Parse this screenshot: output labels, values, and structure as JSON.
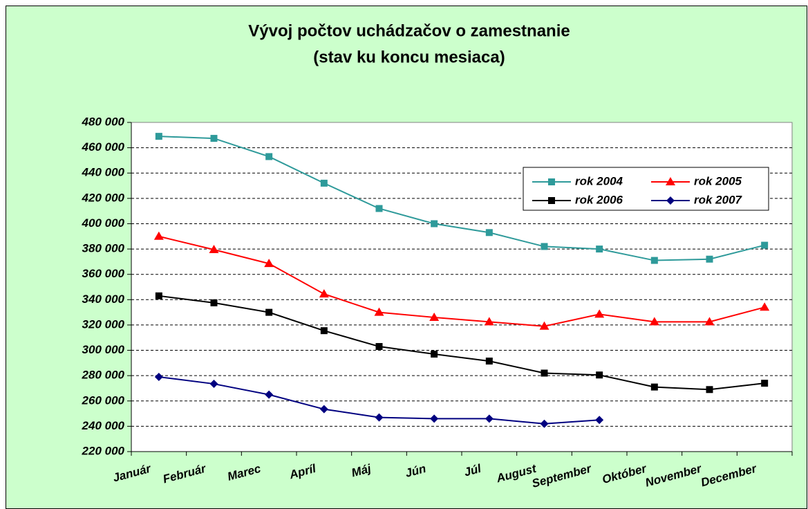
{
  "chart_data": {
    "type": "line",
    "title": "Vývoj  počtov uchádzačov o zamestnanie",
    "subtitle": "(stav ku koncu mesiaca)",
    "categories": [
      "Január",
      "Február",
      "Marec",
      "Apríl",
      "Máj",
      "Jún",
      "Júl",
      "August",
      "September",
      "Október",
      "November",
      "December"
    ],
    "series": [
      {
        "name": "rok 2004",
        "color": "#2e9a9a",
        "marker": "square",
        "values": [
          469000,
          467400,
          453000,
          432000,
          412000,
          400000,
          393000,
          382000,
          380000,
          371000,
          372000,
          383000
        ]
      },
      {
        "name": "rok 2005",
        "color": "#ff0000",
        "marker": "triangle",
        "values": [
          390000,
          379500,
          368500,
          344500,
          330000,
          326000,
          322500,
          319000,
          328500,
          322500,
          322500,
          334000
        ]
      },
      {
        "name": "rok 2006",
        "color": "#000000",
        "marker": "square",
        "values": [
          343000,
          337500,
          330000,
          315500,
          303000,
          297000,
          291500,
          282000,
          280500,
          271000,
          269000,
          274000
        ]
      },
      {
        "name": "rok 2007",
        "color": "#000080",
        "marker": "diamond",
        "values": [
          279000,
          273500,
          265000,
          253500,
          247000,
          246000,
          246000,
          242000,
          245000,
          null,
          null,
          null
        ]
      }
    ],
    "ylim": [
      220000,
      480000
    ],
    "yticks": [
      {
        "value": 220000,
        "label": "220 000"
      },
      {
        "value": 240000,
        "label": "240 000"
      },
      {
        "value": 260000,
        "label": "260 000"
      },
      {
        "value": 280000,
        "label": "280 000"
      },
      {
        "value": 300000,
        "label": "300 000"
      },
      {
        "value": 320000,
        "label": "320 000"
      },
      {
        "value": 340000,
        "label": "340 000"
      },
      {
        "value": 360000,
        "label": "360 000"
      },
      {
        "value": 380000,
        "label": "380 000"
      },
      {
        "value": 400000,
        "label": "400 000"
      },
      {
        "value": 420000,
        "label": "420 000"
      },
      {
        "value": 440000,
        "label": "440 000"
      },
      {
        "value": 460000,
        "label": "460 000"
      },
      {
        "value": 480000,
        "label": "480 000"
      }
    ],
    "grid": true,
    "legend": "upper right"
  }
}
